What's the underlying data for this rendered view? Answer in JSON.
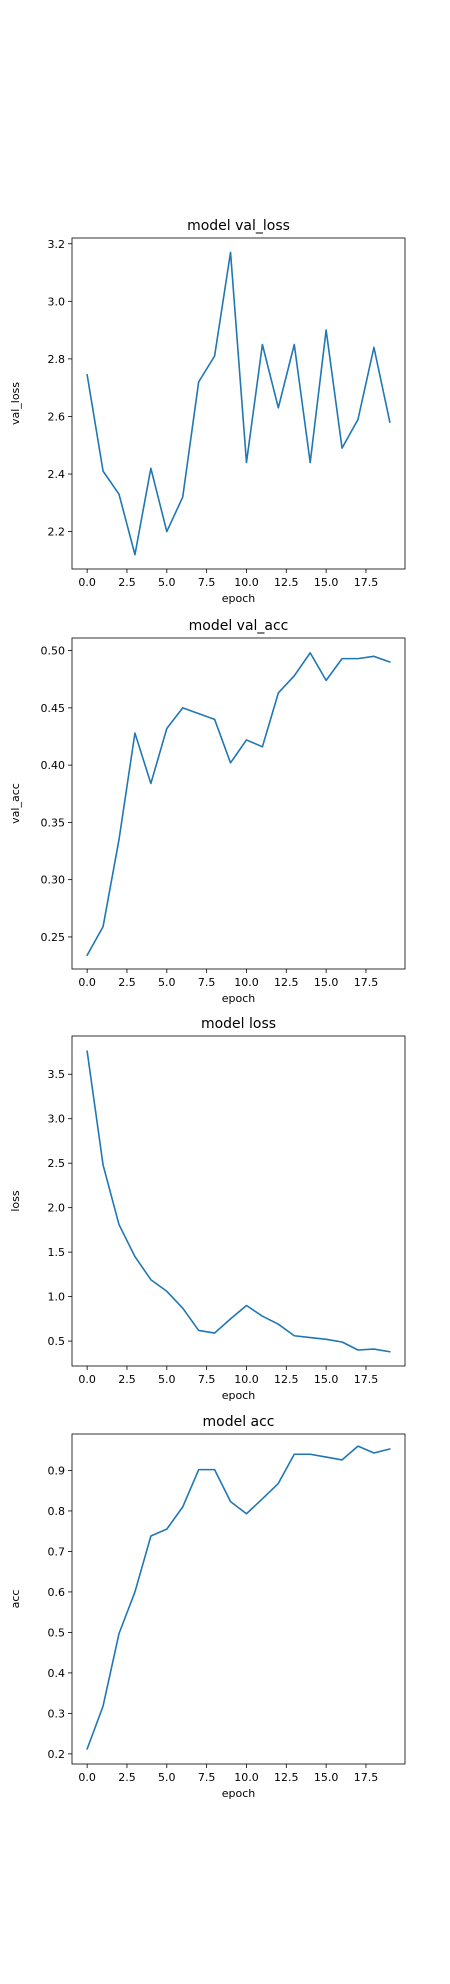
{
  "chart_data": [
    {
      "type": "line",
      "title": "model val_loss",
      "xlabel": "epoch",
      "ylabel": "val_loss",
      "xlim": [
        -0.95,
        19.95
      ],
      "ylim": [
        2.07,
        3.22
      ],
      "xticks": [
        0.0,
        2.5,
        5.0,
        7.5,
        10.0,
        12.5,
        15.0,
        17.5
      ],
      "xtick_labels": [
        "0.0",
        "2.5",
        "5.0",
        "7.5",
        "10.0",
        "12.5",
        "15.0",
        "17.5"
      ],
      "yticks": [
        2.2,
        2.4,
        2.6,
        2.8,
        3.0,
        3.2
      ],
      "ytick_labels": [
        "2.2",
        "2.4",
        "2.6",
        "2.8",
        "3.0",
        "3.2"
      ],
      "grid": false,
      "color": "#1f77b4",
      "x": [
        0,
        1,
        2,
        3,
        4,
        5,
        6,
        7,
        8,
        9,
        10,
        11,
        12,
        13,
        14,
        15,
        16,
        17,
        18,
        19
      ],
      "values": [
        2.745,
        2.41,
        2.33,
        2.12,
        2.42,
        2.2,
        2.32,
        2.72,
        2.81,
        3.17,
        2.44,
        2.85,
        2.63,
        2.85,
        2.44,
        2.9,
        2.49,
        2.59,
        2.84,
        2.58
      ]
    },
    {
      "type": "line",
      "title": "model val_acc",
      "xlabel": "epoch",
      "ylabel": "val_acc",
      "xlim": [
        -0.95,
        19.95
      ],
      "ylim": [
        0.222,
        0.511
      ],
      "xticks": [
        0.0,
        2.5,
        5.0,
        7.5,
        10.0,
        12.5,
        15.0,
        17.5
      ],
      "xtick_labels": [
        "0.0",
        "2.5",
        "5.0",
        "7.5",
        "10.0",
        "12.5",
        "15.0",
        "17.5"
      ],
      "yticks": [
        0.25,
        0.3,
        0.35,
        0.4,
        0.45,
        0.5
      ],
      "ytick_labels": [
        "0.25",
        "0.30",
        "0.35",
        "0.40",
        "0.45",
        "0.50"
      ],
      "grid": false,
      "color": "#1f77b4",
      "x": [
        0,
        1,
        2,
        3,
        4,
        5,
        6,
        7,
        8,
        9,
        10,
        11,
        12,
        13,
        14,
        15,
        16,
        17,
        18,
        19
      ],
      "values": [
        0.234,
        0.259,
        0.335,
        0.428,
        0.384,
        0.432,
        0.45,
        0.445,
        0.44,
        0.402,
        0.422,
        0.416,
        0.463,
        0.478,
        0.498,
        0.474,
        0.493,
        0.493,
        0.495,
        0.49
      ]
    },
    {
      "type": "line",
      "title": "model loss",
      "xlabel": "epoch",
      "ylabel": "loss",
      "xlim": [
        -0.95,
        19.95
      ],
      "ylim": [
        0.22,
        3.93
      ],
      "xticks": [
        0.0,
        2.5,
        5.0,
        7.5,
        10.0,
        12.5,
        15.0,
        17.5
      ],
      "xtick_labels": [
        "0.0",
        "2.5",
        "5.0",
        "7.5",
        "10.0",
        "12.5",
        "15.0",
        "17.5"
      ],
      "yticks": [
        0.5,
        1.0,
        1.5,
        2.0,
        2.5,
        3.0,
        3.5
      ],
      "ytick_labels": [
        "0.5",
        "1.0",
        "1.5",
        "2.0",
        "2.5",
        "3.0",
        "3.5"
      ],
      "grid": false,
      "color": "#1f77b4",
      "x": [
        0,
        1,
        2,
        3,
        4,
        5,
        6,
        7,
        8,
        9,
        10,
        11,
        12,
        13,
        14,
        15,
        16,
        17,
        18,
        19
      ],
      "values": [
        3.76,
        2.48,
        1.81,
        1.45,
        1.19,
        1.06,
        0.87,
        0.62,
        0.59,
        0.75,
        0.9,
        0.78,
        0.69,
        0.56,
        0.54,
        0.52,
        0.49,
        0.4,
        0.41,
        0.38
      ]
    },
    {
      "type": "line",
      "title": "model acc",
      "xlabel": "epoch",
      "ylabel": "acc",
      "xlim": [
        -0.95,
        19.95
      ],
      "ylim": [
        0.175,
        0.99
      ],
      "xticks": [
        0.0,
        2.5,
        5.0,
        7.5,
        10.0,
        12.5,
        15.0,
        17.5
      ],
      "xtick_labels": [
        "0.0",
        "2.5",
        "5.0",
        "7.5",
        "10.0",
        "12.5",
        "15.0",
        "17.5"
      ],
      "yticks": [
        0.2,
        0.3,
        0.4,
        0.5,
        0.6,
        0.7,
        0.8,
        0.9
      ],
      "ytick_labels": [
        "0.2",
        "0.3",
        "0.4",
        "0.5",
        "0.6",
        "0.7",
        "0.8",
        "0.9"
      ],
      "grid": false,
      "color": "#1f77b4",
      "x": [
        0,
        1,
        2,
        3,
        4,
        5,
        6,
        7,
        8,
        9,
        10,
        11,
        12,
        13,
        14,
        15,
        16,
        17,
        18,
        19
      ],
      "values": [
        0.212,
        0.318,
        0.497,
        0.6,
        0.738,
        0.755,
        0.81,
        0.902,
        0.902,
        0.823,
        0.793,
        0.83,
        0.868,
        0.94,
        0.94,
        0.933,
        0.926,
        0.96,
        0.943,
        0.953
      ]
    }
  ]
}
